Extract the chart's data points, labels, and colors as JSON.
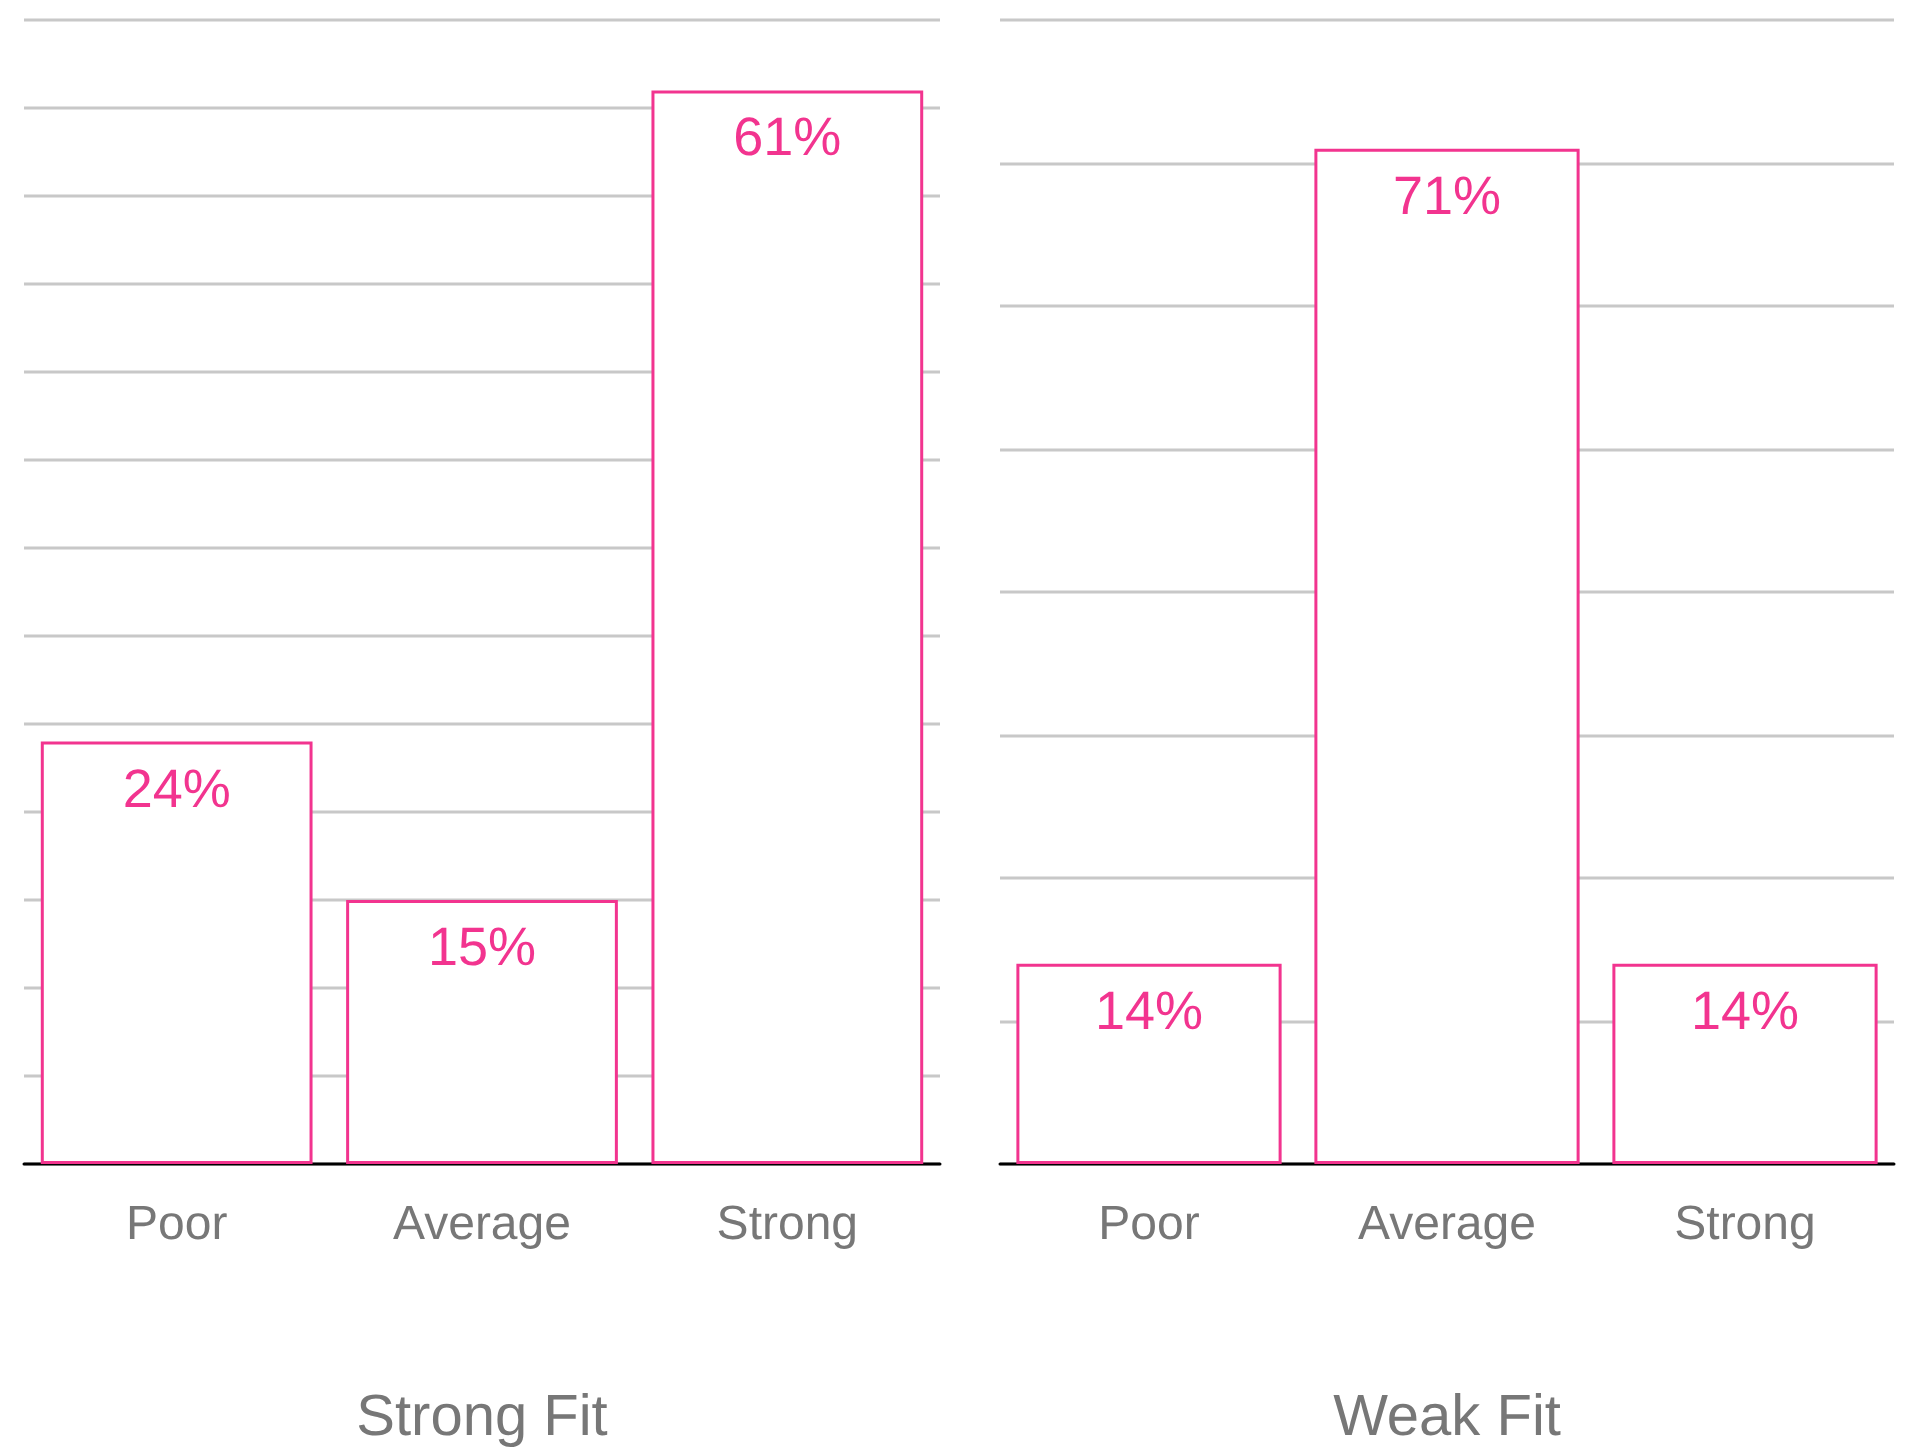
{
  "chart_data": [
    {
      "type": "bar",
      "xlabel": "Strong Fit",
      "categories": [
        "Poor",
        "Average",
        "Strong"
      ],
      "values": [
        24,
        15,
        61
      ],
      "value_labels": [
        "24%",
        "15%",
        "61%"
      ],
      "color": "#f2348f",
      "grid": "y",
      "tick_labels": "x"
    },
    {
      "type": "bar",
      "xlabel": "Weak Fit",
      "categories": [
        "Poor",
        "Average",
        "Strong"
      ],
      "values": [
        14,
        71,
        14
      ],
      "value_labels": [
        "14%",
        "71%",
        "14%"
      ],
      "color": "#f2348f",
      "grid": "y",
      "tick_labels": "x"
    }
  ]
}
